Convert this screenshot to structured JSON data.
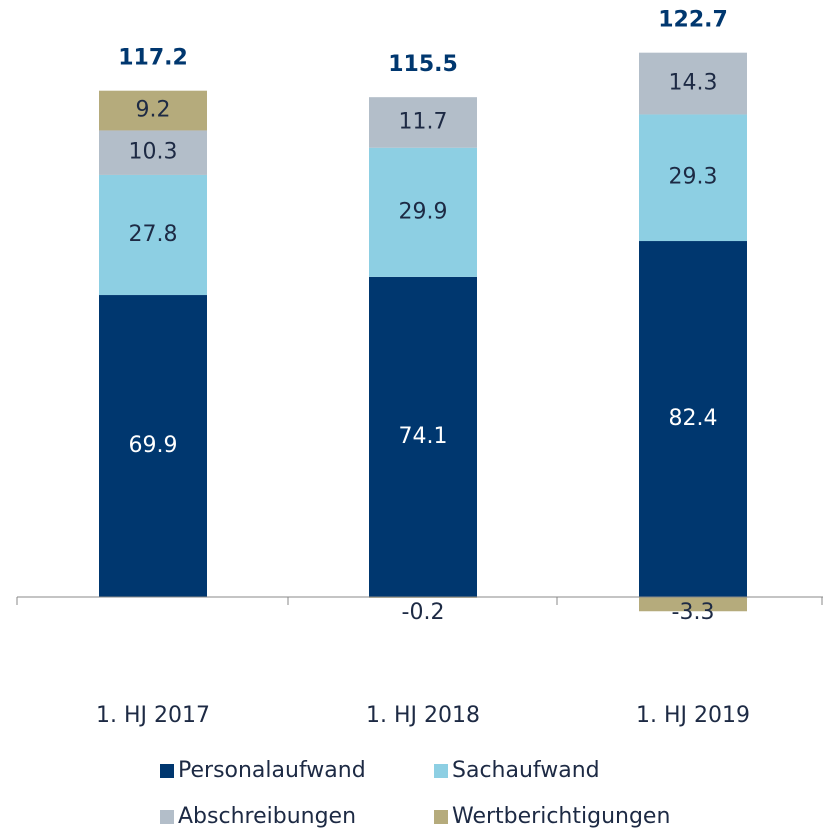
{
  "chart_data": {
    "type": "stacked_bar",
    "categories": [
      "1. HJ 2017",
      "1. HJ 2018",
      "1. HJ 2019"
    ],
    "series": [
      {
        "name": "Personalaufwand",
        "color": "#00376f",
        "values": [
          69.9,
          74.1,
          82.4
        ]
      },
      {
        "name": "Sachaufwand",
        "color": "#8dcfe3",
        "values": [
          27.8,
          29.9,
          29.3
        ]
      },
      {
        "name": "Abschreibungen",
        "color": "#b3bec9",
        "values": [
          10.3,
          11.7,
          14.3
        ]
      },
      {
        "name": "Wertberichtigungen",
        "color": "#b5ab7c",
        "values": [
          9.2,
          -0.2,
          -3.3
        ]
      }
    ],
    "totals": [
      117.2,
      115.5,
      122.7
    ]
  }
}
